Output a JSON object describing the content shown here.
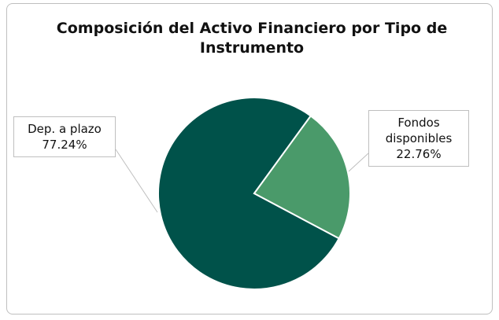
{
  "chart_data": {
    "type": "pie",
    "title": "Composición del Activo Financiero por Tipo de Instrumento",
    "categories": [
      "Dep. a plazo",
      "Fondos disponibles"
    ],
    "values": [
      77.24,
      22.76
    ],
    "value_labels": [
      "77.24%",
      "22.76%"
    ],
    "colors": [
      "#00524a",
      "#4a9a6a"
    ]
  }
}
